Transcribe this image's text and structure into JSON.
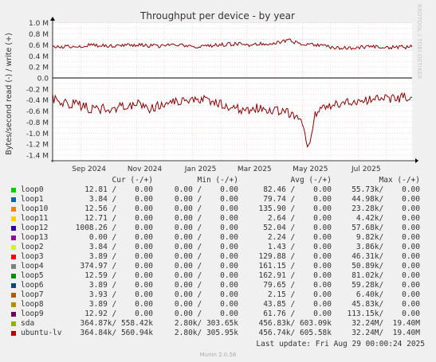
{
  "chart_data": {
    "type": "line",
    "title": "Throughput per device - by year",
    "ylabel": "Bytes/second read (-) / write (+)",
    "ylim": [
      -1.45,
      1.05
    ],
    "yticks": [
      "1.0 M",
      "0.8 M",
      "0.6 M",
      "0.4 M",
      "0.2 M",
      "0.0",
      "-0.2 M",
      "-0.4 M",
      "-0.6 M",
      "-0.8 M",
      "-1.0 M",
      "-1.2 M",
      "-1.4 M"
    ],
    "ytick_values": [
      1.0,
      0.8,
      0.6,
      0.4,
      0.2,
      0.0,
      -0.2,
      -0.4,
      -0.6,
      -0.8,
      -1.0,
      -1.2,
      -1.4
    ],
    "xlim": [
      "2024-08-01",
      "2025-08-29"
    ],
    "xticks": [
      {
        "label": "Sep 2024",
        "date": "2024-09-01"
      },
      {
        "label": "Nov 2024",
        "date": "2024-11-01"
      },
      {
        "label": "Jan 2025",
        "date": "2025-01-01"
      },
      {
        "label": "Mar 2025",
        "date": "2025-03-01"
      },
      {
        "label": "May 2025",
        "date": "2025-05-01"
      },
      {
        "label": "Jul 2025",
        "date": "2025-07-01"
      }
    ],
    "grid": true,
    "series": [
      {
        "name": "ubuntu-lv",
        "color": "#8b0000",
        "write": [
          [
            "2024-08-01",
            0.55
          ],
          [
            "2024-08-15",
            0.57
          ],
          [
            "2024-09-01",
            0.58
          ],
          [
            "2024-09-15",
            0.6
          ],
          [
            "2024-10-01",
            0.58
          ],
          [
            "2024-10-15",
            0.6
          ],
          [
            "2024-11-01",
            0.6
          ],
          [
            "2024-11-15",
            0.58
          ],
          [
            "2024-12-01",
            0.58
          ],
          [
            "2024-12-15",
            0.6
          ],
          [
            "2025-01-01",
            0.56
          ],
          [
            "2025-01-15",
            0.58
          ],
          [
            "2025-02-01",
            0.6
          ],
          [
            "2025-02-15",
            0.62
          ],
          [
            "2025-03-01",
            0.6
          ],
          [
            "2025-03-15",
            0.62
          ],
          [
            "2025-04-01",
            0.64
          ],
          [
            "2025-04-15",
            0.68
          ],
          [
            "2025-05-01",
            0.62
          ],
          [
            "2025-05-15",
            0.6
          ],
          [
            "2025-06-01",
            0.56
          ],
          [
            "2025-06-15",
            0.54
          ],
          [
            "2025-07-01",
            0.56
          ],
          [
            "2025-07-15",
            0.56
          ],
          [
            "2025-08-01",
            0.55
          ],
          [
            "2025-08-15",
            0.56
          ],
          [
            "2025-08-29",
            0.56
          ]
        ],
        "read": [
          [
            "2024-08-01",
            -0.38
          ],
          [
            "2024-08-15",
            -0.45
          ],
          [
            "2024-09-01",
            -0.5
          ],
          [
            "2024-09-15",
            -0.58
          ],
          [
            "2024-10-01",
            -0.55
          ],
          [
            "2024-10-15",
            -0.52
          ],
          [
            "2024-11-01",
            -0.48
          ],
          [
            "2024-11-15",
            -0.55
          ],
          [
            "2024-12-01",
            -0.5
          ],
          [
            "2024-12-15",
            -0.42
          ],
          [
            "2025-01-01",
            -0.35
          ],
          [
            "2025-01-15",
            -0.4
          ],
          [
            "2025-02-01",
            -0.48
          ],
          [
            "2025-02-15",
            -0.55
          ],
          [
            "2025-03-01",
            -0.58
          ],
          [
            "2025-03-15",
            -0.55
          ],
          [
            "2025-04-01",
            -0.58
          ],
          [
            "2025-04-15",
            -0.62
          ],
          [
            "2025-05-01",
            -0.8
          ],
          [
            "2025-05-08",
            -1.28
          ],
          [
            "2025-05-15",
            -0.62
          ],
          [
            "2025-06-01",
            -0.5
          ],
          [
            "2025-06-15",
            -0.45
          ],
          [
            "2025-07-01",
            -0.42
          ],
          [
            "2025-07-15",
            -0.38
          ],
          [
            "2025-08-01",
            -0.36
          ],
          [
            "2025-08-29",
            -0.35
          ]
        ]
      }
    ],
    "axis_color": "#000000",
    "grid_color": "#e8b4b4"
  },
  "legend": {
    "headers": {
      "cur": "Cur (-/+)",
      "min": "Min (-/+)",
      "avg": "Avg (-/+)",
      "max": "Max (-/+)"
    },
    "rows": [
      {
        "name": "loop0",
        "color": "#00cc00",
        "cur": "12.81 /    0.00",
        "min": "0.00 /    0.00",
        "avg": "82.46 /    0.00",
        "max": "55.73k/    0.00"
      },
      {
        "name": "loop1",
        "color": "#0066b3",
        "cur": "3.84 /    0.00",
        "min": "0.00 /    0.00",
        "avg": "79.74 /    0.00",
        "max": "44.98k/    0.00"
      },
      {
        "name": "loop10",
        "color": "#ff8000",
        "cur": "12.56 /    0.00",
        "min": "0.00 /    0.00",
        "avg": "135.90 /    0.00",
        "max": "23.28k/    0.00"
      },
      {
        "name": "loop11",
        "color": "#ffcc00",
        "cur": "12.71 /    0.00",
        "min": "0.00 /    0.00",
        "avg": "2.64 /    0.00",
        "max": "4.42k/    0.00"
      },
      {
        "name": "loop12",
        "color": "#330099",
        "cur": "1008.26 /    0.00",
        "min": "0.00 /    0.00",
        "avg": "52.04 /    0.00",
        "max": "57.68k/    0.00"
      },
      {
        "name": "loop13",
        "color": "#990099",
        "cur": "0.00 /    0.00",
        "min": "0.00 /    0.00",
        "avg": "2.24 /    0.00",
        "max": "9.82k/    0.00"
      },
      {
        "name": "loop2",
        "color": "#ccff00",
        "cur": "3.84 /    0.00",
        "min": "0.00 /    0.00",
        "avg": "1.43 /    0.00",
        "max": "3.86k/    0.00"
      },
      {
        "name": "loop3",
        "color": "#ff0000",
        "cur": "3.89 /    0.00",
        "min": "0.00 /    0.00",
        "avg": "129.88 /    0.00",
        "max": "46.31k/    0.00"
      },
      {
        "name": "loop4",
        "color": "#808080",
        "cur": "374.97 /    0.00",
        "min": "0.00 /    0.00",
        "avg": "161.15 /    0.00",
        "max": "50.89k/    0.00"
      },
      {
        "name": "loop5",
        "color": "#008f00",
        "cur": "12.59 /    0.00",
        "min": "0.00 /    0.00",
        "avg": "162.91 /    0.00",
        "max": "81.02k/    0.00"
      },
      {
        "name": "loop6",
        "color": "#00487d",
        "cur": "3.89 /    0.00",
        "min": "0.00 /    0.00",
        "avg": "79.65 /    0.00",
        "max": "59.28k/    0.00"
      },
      {
        "name": "loop7",
        "color": "#b35a00",
        "cur": "3.93 /    0.00",
        "min": "0.00 /    0.00",
        "avg": "2.15 /    0.00",
        "max": "6.40k/    0.00"
      },
      {
        "name": "loop8",
        "color": "#b38f00",
        "cur": "3.89 /    0.00",
        "min": "0.00 /    0.00",
        "avg": "43.85 /    0.00",
        "max": "45.83k/    0.00"
      },
      {
        "name": "loop9",
        "color": "#6b006b",
        "cur": "12.92 /    0.00",
        "min": "0.00 /    0.00",
        "avg": "61.76 /    0.00",
        "max": "113.15k/    0.00"
      },
      {
        "name": "sda",
        "color": "#8fb300",
        "cur": "364.87k/ 558.42k",
        "min": "2.80k/ 303.65k",
        "avg": "456.83k/ 603.09k",
        "max": "32.24M/  19.40M"
      },
      {
        "name": "ubuntu-lv",
        "color": "#b30000",
        "cur": "364.84k/ 560.94k",
        "min": "2.80k/ 305.95k",
        "avg": "456.74k/ 605.58k",
        "max": "32.24M/  19.40M"
      }
    ]
  },
  "footer": {
    "last_update": "Last update: Fri Aug 29 00:00:24 2025"
  },
  "munin_version": "Munin 2.0.56",
  "watermark": "RRDTOOL / TOBI OETIKER"
}
